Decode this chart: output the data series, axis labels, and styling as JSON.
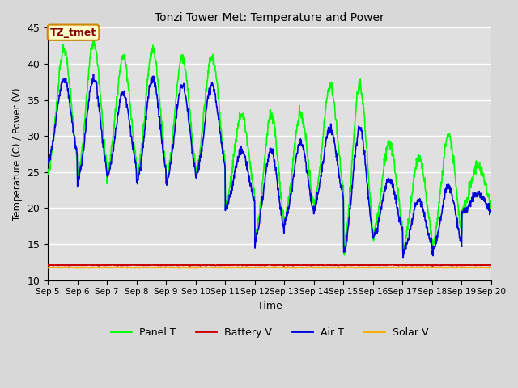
{
  "title": "Tonzi Tower Met: Temperature and Power",
  "xlabel": "Time",
  "ylabel": "Temperature (C) / Power (V)",
  "ylim": [
    10,
    45
  ],
  "annotation": "TZ_tmet",
  "fig_bg_color": "#d8d8d8",
  "plot_bg_color": "#e0e0e0",
  "series": {
    "panel_T": {
      "color": "#00ff00",
      "label": "Panel T",
      "lw": 1.2
    },
    "battery_V": {
      "color": "#cc0000",
      "label": "Battery V",
      "lw": 1.2
    },
    "air_T": {
      "color": "#0000dd",
      "label": "Air T",
      "lw": 1.2
    },
    "solar_V": {
      "color": "#ffaa00",
      "label": "Solar V",
      "lw": 1.2
    }
  },
  "tick_labels": [
    "Sep 5",
    "Sep 6",
    "Sep 7",
    "Sep 8",
    "Sep 9",
    "Sep 10",
    "Sep 11",
    "Sep 12",
    "Sep 13",
    "Sep 14",
    "Sep 15",
    "Sep 16",
    "Sep 17",
    "Sep 18",
    "Sep 19",
    "Sep 20"
  ],
  "grid_color": "#ffffff",
  "annotation_box_facecolor": "#ffffcc",
  "annotation_box_edgecolor": "#cc8800",
  "annotation_text_color": "#880000",
  "days": 15,
  "ppd": 96
}
